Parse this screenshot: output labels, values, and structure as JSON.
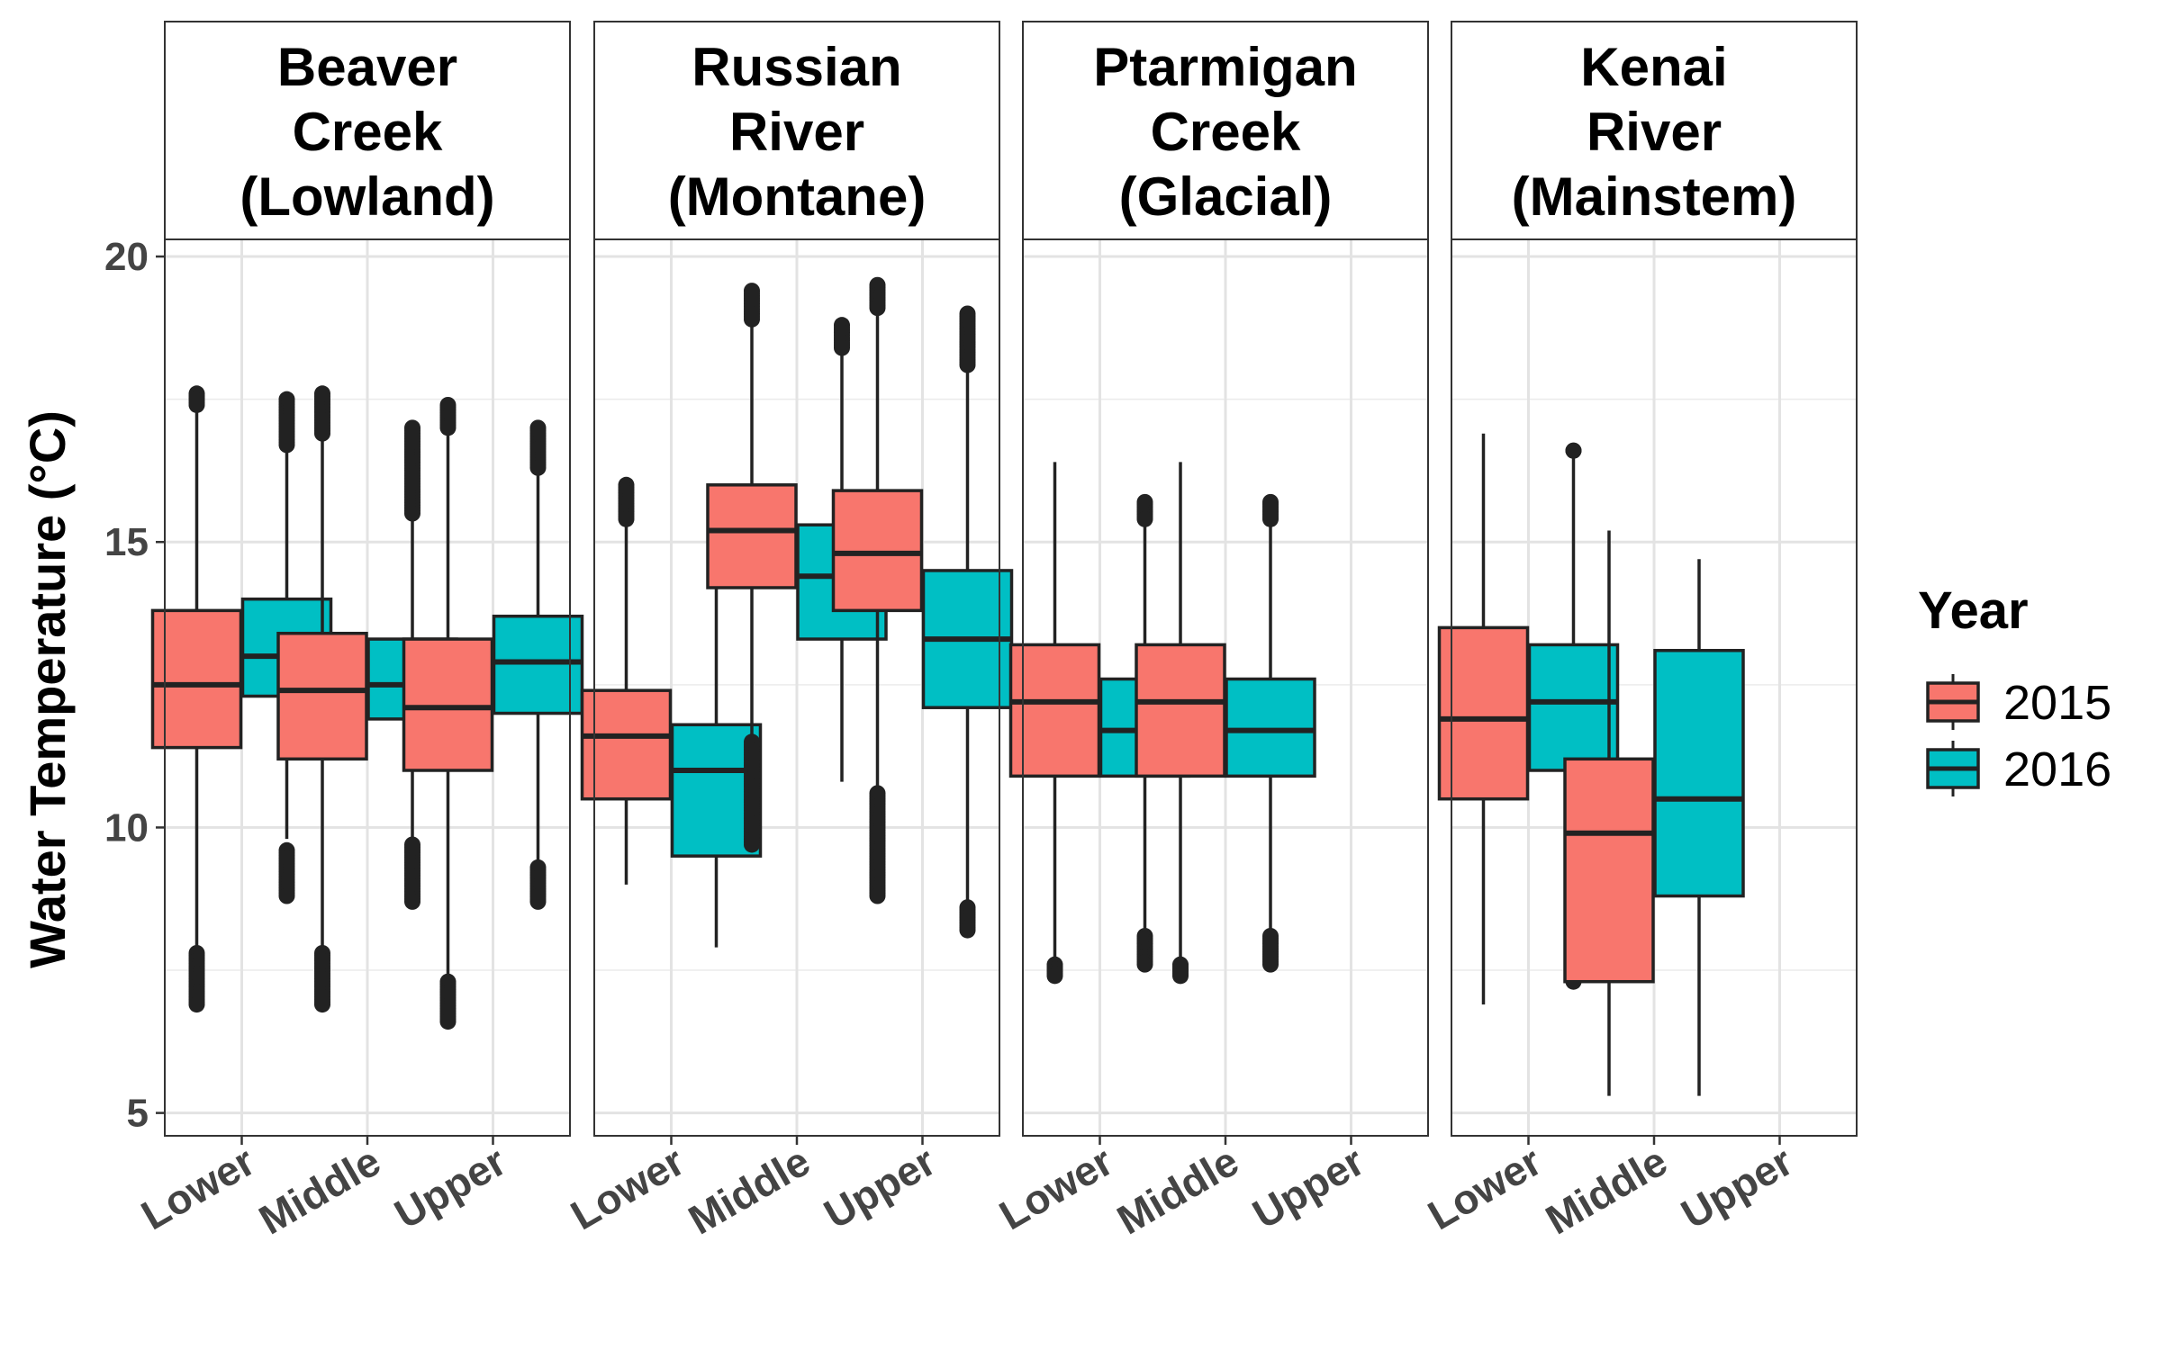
{
  "chart_data": {
    "type": "boxplot",
    "ylabel": "Water Temperature (°C)",
    "xlabel": "",
    "ylim": [
      4.6,
      20.3
    ],
    "yticks": [
      5,
      10,
      15,
      20
    ],
    "categories": [
      "Lower",
      "Middle",
      "Upper"
    ],
    "legend": {
      "title": "Year",
      "placement": "right",
      "entries": [
        {
          "label": "2015",
          "color": "#F8766D"
        },
        {
          "label": "2016",
          "color": "#00BFC4"
        }
      ]
    },
    "grid": true,
    "panels": [
      {
        "title": [
          "Beaver",
          "Creek",
          "(Lowland)"
        ],
        "boxes": [
          {
            "category": "Lower",
            "series": "2015",
            "q1": 11.4,
            "median": 12.5,
            "q3": 13.8,
            "whisker_low": 7.9,
            "whisker_high": 17.4,
            "outlier_ranges": [
              [
                6.9,
                7.8
              ],
              [
                17.4,
                17.6
              ]
            ]
          },
          {
            "category": "Lower",
            "series": "2016",
            "q1": 12.3,
            "median": 13.0,
            "q3": 14.0,
            "whisker_low": 9.8,
            "whisker_high": 16.8,
            "outlier_ranges": [
              [
                8.8,
                9.6
              ],
              [
                16.7,
                17.5
              ]
            ]
          },
          {
            "category": "Middle",
            "series": "2015",
            "q1": 11.2,
            "median": 12.4,
            "q3": 13.4,
            "whisker_low": 7.9,
            "whisker_high": 17.0,
            "outlier_ranges": [
              [
                6.9,
                7.8
              ],
              [
                16.9,
                17.6
              ]
            ]
          },
          {
            "category": "Middle",
            "series": "2016",
            "q1": 11.9,
            "median": 12.5,
            "q3": 13.3,
            "whisker_low": 9.8,
            "whisker_high": 15.5,
            "outlier_ranges": [
              [
                8.7,
                9.7
              ],
              [
                15.5,
                17.0
              ]
            ]
          },
          {
            "category": "Upper",
            "series": "2015",
            "q1": 11.0,
            "median": 12.1,
            "q3": 13.3,
            "whisker_low": 7.4,
            "whisker_high": 17.0,
            "outlier_ranges": [
              [
                6.6,
                7.3
              ],
              [
                17.0,
                17.4
              ]
            ]
          },
          {
            "category": "Upper",
            "series": "2016",
            "q1": 12.0,
            "median": 12.9,
            "q3": 13.7,
            "whisker_low": 9.4,
            "whisker_high": 16.3,
            "outlier_ranges": [
              [
                8.7,
                9.3
              ],
              [
                16.3,
                17.0
              ]
            ]
          }
        ]
      },
      {
        "title": [
          "Russian",
          "River",
          "(Montane)"
        ],
        "boxes": [
          {
            "category": "Lower",
            "series": "2015",
            "q1": 10.5,
            "median": 11.6,
            "q3": 12.4,
            "whisker_low": 9.0,
            "whisker_high": 15.4,
            "outlier_ranges": [
              [
                15.4,
                16.0
              ]
            ]
          },
          {
            "category": "Lower",
            "series": "2016",
            "q1": 9.5,
            "median": 11.0,
            "q3": 11.8,
            "whisker_low": 7.9,
            "whisker_high": 14.5,
            "outlier_ranges": []
          },
          {
            "category": "Middle",
            "series": "2015",
            "q1": 14.2,
            "median": 15.2,
            "q3": 16.0,
            "whisker_low": 11.5,
            "whisker_high": 18.9,
            "outlier_ranges": [
              [
                9.7,
                11.5
              ],
              [
                18.9,
                19.4
              ]
            ]
          },
          {
            "category": "Middle",
            "series": "2016",
            "q1": 13.3,
            "median": 14.4,
            "q3": 15.3,
            "whisker_low": 10.8,
            "whisker_high": 18.4,
            "outlier_ranges": [
              [
                18.4,
                18.8
              ]
            ]
          },
          {
            "category": "Upper",
            "series": "2015",
            "q1": 13.8,
            "median": 14.8,
            "q3": 15.9,
            "whisker_low": 10.7,
            "whisker_high": 19.1,
            "outlier_ranges": [
              [
                8.8,
                10.6
              ],
              [
                19.1,
                19.5
              ]
            ]
          },
          {
            "category": "Upper",
            "series": "2016",
            "q1": 12.1,
            "median": 13.3,
            "q3": 14.5,
            "whisker_low": 8.7,
            "whisker_high": 18.1,
            "outlier_ranges": [
              [
                8.2,
                8.6
              ],
              [
                18.1,
                19.0
              ]
            ]
          }
        ]
      },
      {
        "title": [
          "Ptarmigan",
          "Creek",
          "(Glacial)"
        ],
        "boxes": [
          {
            "category": "Lower",
            "series": "2015",
            "q1": 10.9,
            "median": 12.2,
            "q3": 13.2,
            "whisker_low": 7.6,
            "whisker_high": 16.4,
            "outlier_ranges": [
              [
                7.4,
                7.6
              ]
            ]
          },
          {
            "category": "Lower",
            "series": "2016",
            "q1": 10.9,
            "median": 11.7,
            "q3": 12.6,
            "whisker_low": 8.2,
            "whisker_high": 15.4,
            "outlier_ranges": [
              [
                7.6,
                8.1
              ],
              [
                15.4,
                15.7
              ]
            ]
          },
          {
            "category": "Middle",
            "series": "2015",
            "q1": 10.9,
            "median": 12.2,
            "q3": 13.2,
            "whisker_low": 7.6,
            "whisker_high": 16.4,
            "outlier_ranges": [
              [
                7.4,
                7.6
              ]
            ]
          },
          {
            "category": "Middle",
            "series": "2016",
            "q1": 10.9,
            "median": 11.7,
            "q3": 12.6,
            "whisker_low": 8.2,
            "whisker_high": 15.4,
            "outlier_ranges": [
              [
                7.6,
                8.1
              ],
              [
                15.4,
                15.7
              ]
            ]
          }
        ]
      },
      {
        "title": [
          "Kenai",
          "River",
          "(Mainstem)"
        ],
        "boxes": [
          {
            "category": "Lower",
            "series": "2015",
            "q1": 10.5,
            "median": 11.9,
            "q3": 13.5,
            "whisker_low": 6.9,
            "whisker_high": 16.9,
            "outlier_ranges": []
          },
          {
            "category": "Lower",
            "series": "2016",
            "q1": 11.0,
            "median": 12.2,
            "q3": 13.2,
            "whisker_low": 7.7,
            "whisker_high": 16.6,
            "outlier_ranges": [
              [
                7.3,
                7.7
              ],
              [
                16.6,
                16.6
              ]
            ]
          },
          {
            "category": "Middle",
            "series": "2015",
            "q1": 7.3,
            "median": 9.9,
            "q3": 11.2,
            "whisker_low": 5.3,
            "whisker_high": 15.2,
            "outlier_ranges": []
          },
          {
            "category": "Middle",
            "series": "2016",
            "q1": 8.8,
            "median": 10.5,
            "q3": 13.1,
            "whisker_low": 5.3,
            "whisker_high": 14.7,
            "outlier_ranges": []
          }
        ]
      }
    ]
  }
}
